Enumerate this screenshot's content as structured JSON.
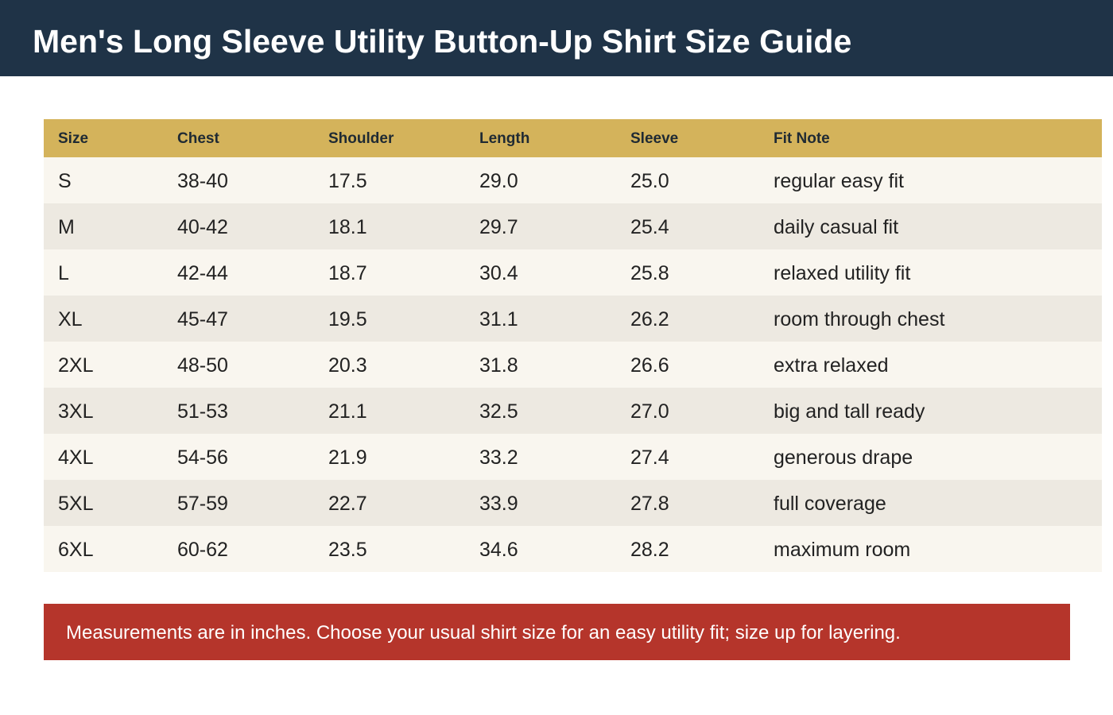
{
  "header": {
    "title": "Men's Long Sleeve Utility Button-Up Shirt Size Guide"
  },
  "table": {
    "columns": [
      "Size",
      "Chest",
      "Shoulder",
      "Length",
      "Sleeve",
      "Fit Note"
    ],
    "rows": [
      [
        "S",
        "38-40",
        "17.5",
        "29.0",
        "25.0",
        "regular easy fit"
      ],
      [
        "M",
        "40-42",
        "18.1",
        "29.7",
        "25.4",
        "daily casual fit"
      ],
      [
        "L",
        "42-44",
        "18.7",
        "30.4",
        "25.8",
        "relaxed utility fit"
      ],
      [
        "XL",
        "45-47",
        "19.5",
        "31.1",
        "26.2",
        "room through chest"
      ],
      [
        "2XL",
        "48-50",
        "20.3",
        "31.8",
        "26.6",
        "extra relaxed"
      ],
      [
        "3XL",
        "51-53",
        "21.1",
        "32.5",
        "27.0",
        "big and tall ready"
      ],
      [
        "4XL",
        "54-56",
        "21.9",
        "33.2",
        "27.4",
        "generous drape"
      ],
      [
        "5XL",
        "57-59",
        "22.7",
        "33.9",
        "27.8",
        "full coverage"
      ],
      [
        "6XL",
        "60-62",
        "23.5",
        "34.6",
        "28.2",
        "maximum room"
      ]
    ]
  },
  "note": {
    "text": "Measurements are in inches. Choose your usual shirt size for an easy utility fit; size up for layering."
  },
  "colors": {
    "header_bg": "#1f3347",
    "table_header_bg": "#d4b35b",
    "note_bg": "#b5352b"
  }
}
